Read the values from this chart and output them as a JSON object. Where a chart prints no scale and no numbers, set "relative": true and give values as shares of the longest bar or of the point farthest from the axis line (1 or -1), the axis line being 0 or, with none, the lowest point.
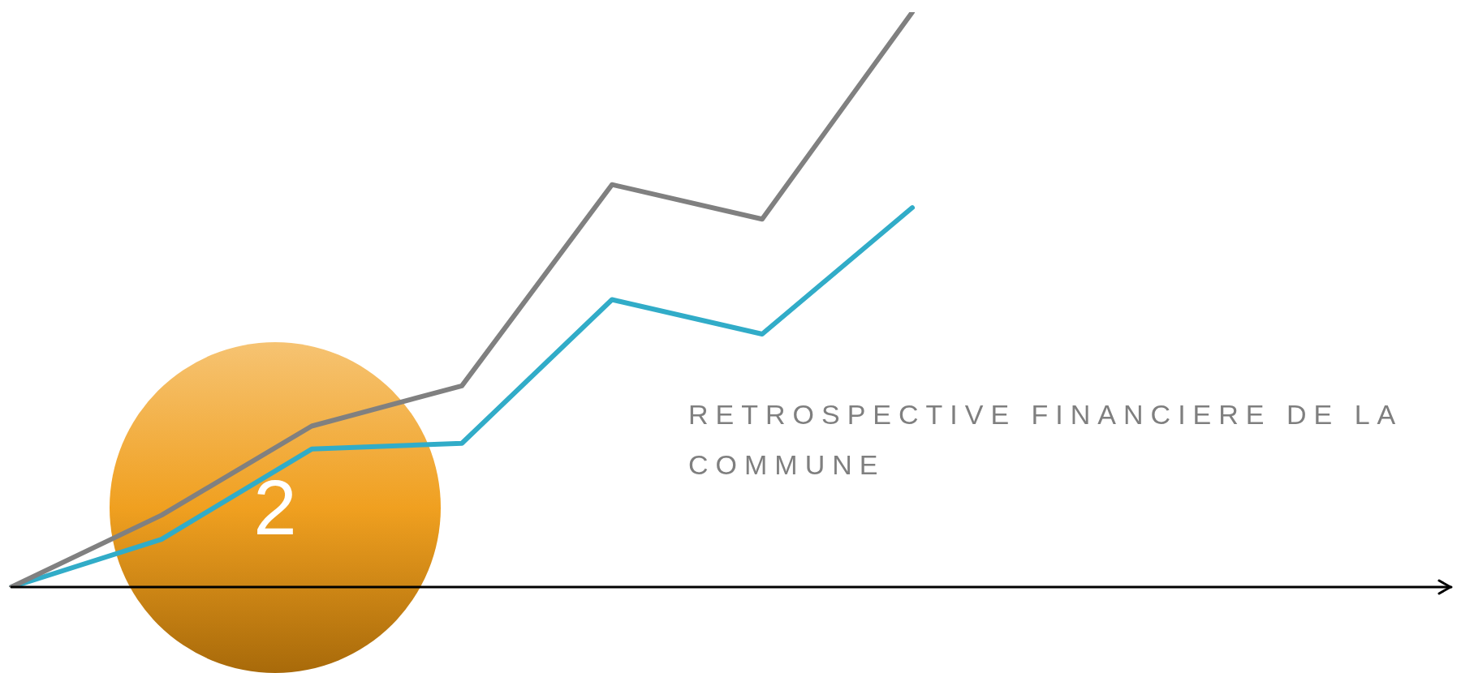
{
  "chart_data": {
    "type": "line",
    "title": "RETROSPECTIVE FINANCIERE DE LA COMMUNE",
    "relative": true,
    "categories": [
      null,
      null,
      null,
      null,
      null,
      null,
      null,
      null,
      null,
      null
    ],
    "series": [
      {
        "color": "#808080",
        "values": [
          0,
          0.125,
          0.28,
          0.35,
          0.7,
          0.64,
          1,
          null,
          null,
          null
        ]
      },
      {
        "color": "#31acc8",
        "values": [
          0,
          0.083,
          0.24,
          0.25,
          0.5,
          0.44,
          0.66,
          null,
          null,
          null
        ]
      }
    ],
    "annotations": [
      "2"
    ]
  }
}
